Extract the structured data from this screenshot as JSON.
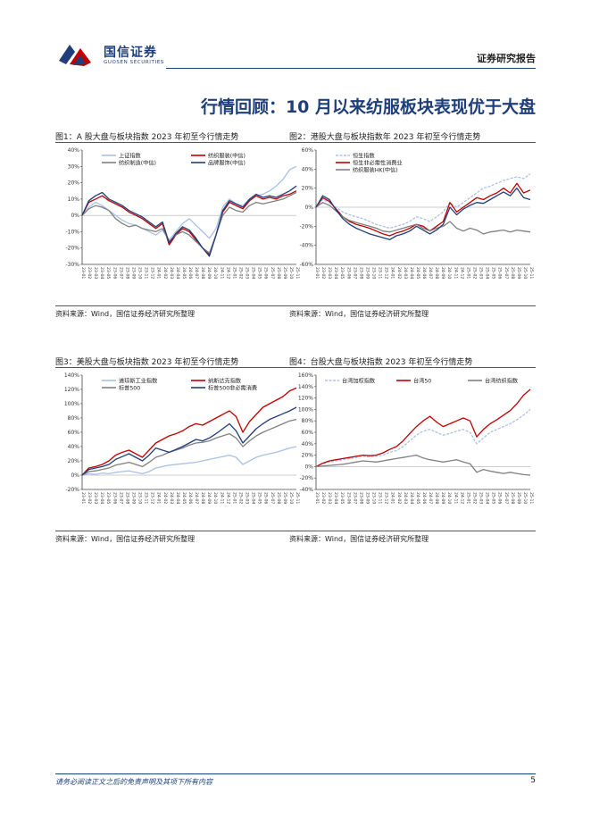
{
  "header": {
    "logo_cn": "国信证券",
    "logo_en": "GUOSEN SECURITIES",
    "report_type": "证券研究报告"
  },
  "section_title": "行情回顾：10 月以来纺服板块表现优于大盘",
  "colors": {
    "brand": "#1f3f7a",
    "light_blue": "#a9c1e8",
    "red": "#c00000",
    "gray": "#808080",
    "dark_blue": "#1f3f7a"
  },
  "figures": [
    {
      "title": "图1：A 股大盘与板块指数 2023 年初至今行情走势",
      "source": "资料来源：Wind，国信证券经济研究所整理",
      "chart_data": {
        "type": "line",
        "y_ticks": [
          "40%",
          "30%",
          "20%",
          "10%",
          "0%",
          "-10%",
          "-20%",
          "-30%"
        ],
        "ylim": [
          -30,
          40
        ],
        "x_start": "2023-01",
        "x_end": "2025-11",
        "legend_cols": 2,
        "series": [
          {
            "name": "上证指数",
            "color": "#a9c1e8",
            "style": "solid",
            "values": [
              0,
              5,
              8,
              6,
              3,
              0,
              -3,
              -5,
              -6,
              -8,
              -10,
              -12,
              -9,
              -15,
              -10,
              -5,
              -2,
              -6,
              -10,
              -14,
              -8,
              5,
              10,
              7,
              6,
              10,
              12,
              13,
              15,
              18,
              22,
              28,
              30
            ]
          },
          {
            "name": "纺织服装(中信)",
            "color": "#c00000",
            "style": "solid",
            "values": [
              0,
              8,
              10,
              12,
              9,
              7,
              5,
              2,
              0,
              -2,
              -5,
              -8,
              -5,
              -18,
              -12,
              -8,
              -10,
              -15,
              -20,
              -24,
              -12,
              2,
              8,
              6,
              4,
              9,
              12,
              10,
              11,
              10,
              12,
              13,
              15
            ]
          },
          {
            "name": "纺织制造(中信)",
            "color": "#808080",
            "style": "solid",
            "values": [
              0,
              4,
              6,
              5,
              3,
              -2,
              -5,
              -7,
              -6,
              -8,
              -9,
              -10,
              -8,
              -16,
              -12,
              -10,
              -12,
              -16,
              -20,
              -23,
              -12,
              0,
              5,
              3,
              2,
              6,
              8,
              7,
              8,
              9,
              10,
              12,
              14
            ]
          },
          {
            "name": "品牌服饰(中信)",
            "color": "#1f3f7a",
            "style": "solid",
            "values": [
              0,
              9,
              12,
              14,
              10,
              8,
              6,
              3,
              1,
              -1,
              -4,
              -7,
              -4,
              -17,
              -11,
              -7,
              -9,
              -14,
              -20,
              -25,
              -12,
              3,
              9,
              7,
              5,
              10,
              13,
              11,
              12,
              11,
              13,
              15,
              18
            ]
          }
        ]
      }
    },
    {
      "title": "图2：港股大盘与板块指数年 2023 年初至今行情走势",
      "source": "资料来源：Wind，国信证券经济研究所整理",
      "chart_data": {
        "type": "line",
        "y_ticks": [
          "60%",
          "40%",
          "20%",
          "0%",
          "-20%",
          "-40%",
          "-60%"
        ],
        "ylim": [
          -60,
          60
        ],
        "x_start": "2023-01",
        "x_end": "2025-11",
        "legend_cols": 1,
        "series": [
          {
            "name": "恒生指数",
            "color": "#a9c1e8",
            "style": "dashed",
            "values": [
              0,
              8,
              5,
              0,
              -5,
              -8,
              -10,
              -12,
              -15,
              -18,
              -20,
              -22,
              -20,
              -18,
              -15,
              -10,
              -12,
              -15,
              -10,
              -5,
              5,
              0,
              5,
              10,
              15,
              20,
              22,
              25,
              28,
              30,
              32,
              30,
              35
            ]
          },
          {
            "name": "恒生非必需性消费业",
            "color": "#c00000",
            "style": "solid",
            "values": [
              0,
              10,
              6,
              -2,
              -10,
              -15,
              -18,
              -20,
              -22,
              -25,
              -28,
              -30,
              -27,
              -25,
              -22,
              -18,
              -20,
              -25,
              -20,
              -15,
              5,
              -5,
              0,
              5,
              10,
              8,
              12,
              15,
              20,
              15,
              25,
              15,
              18
            ]
          },
          {
            "name": "纺织服装HK(中信)",
            "color": "#808080",
            "style": "solid",
            "values": [
              0,
              5,
              2,
              -4,
              -10,
              -14,
              -16,
              -18,
              -20,
              -22,
              -25,
              -26,
              -24,
              -22,
              -20,
              -18,
              -22,
              -25,
              -22,
              -20,
              -15,
              -22,
              -25,
              -22,
              -24,
              -28,
              -26,
              -25,
              -24,
              -26,
              -24,
              -25,
              -26
            ]
          },
          {
            "name": "",
            "color": "#1f3f7a",
            "style": "solid",
            "values": [
              0,
              12,
              8,
              -3,
              -12,
              -18,
              -22,
              -25,
              -28,
              -30,
              -32,
              -34,
              -30,
              -28,
              -25,
              -20,
              -24,
              -28,
              -24,
              -18,
              0,
              -8,
              -2,
              2,
              5,
              4,
              8,
              12,
              16,
              12,
              20,
              10,
              8
            ]
          }
        ]
      }
    },
    {
      "title": "图3：美股大盘与板块指数 2023 年初至今行情走势",
      "source": "资料来源：Wind，国信证券经济研究所整理",
      "chart_data": {
        "type": "line",
        "y_ticks": [
          "140%",
          "120%",
          "100%",
          "80%",
          "60%",
          "40%",
          "20%",
          "0%",
          "-20%"
        ],
        "ylim": [
          -20,
          140
        ],
        "x_start": "2023-01",
        "x_end": "2025-11",
        "legend_cols": 2,
        "series": [
          {
            "name": "道琼斯工业指数",
            "color": "#a9c1e8",
            "style": "solid",
            "values": [
              0,
              2,
              1,
              3,
              2,
              4,
              5,
              6,
              4,
              2,
              5,
              10,
              12,
              14,
              15,
              16,
              17,
              18,
              20,
              22,
              24,
              26,
              28,
              25,
              15,
              20,
              25,
              28,
              30,
              32,
              35,
              38,
              40
            ]
          },
          {
            "name": "纳斯达克指数",
            "color": "#c00000",
            "style": "solid",
            "values": [
              0,
              10,
              12,
              15,
              20,
              28,
              32,
              35,
              30,
              25,
              35,
              45,
              50,
              55,
              58,
              62,
              68,
              72,
              70,
              75,
              80,
              85,
              90,
              82,
              60,
              75,
              85,
              95,
              100,
              105,
              110,
              118,
              122
            ]
          },
          {
            "name": "标普500",
            "color": "#808080",
            "style": "solid",
            "values": [
              0,
              5,
              6,
              8,
              10,
              14,
              16,
              18,
              15,
              12,
              18,
              25,
              28,
              32,
              35,
              38,
              42,
              45,
              46,
              48,
              52,
              55,
              58,
              52,
              40,
              48,
              55,
              60,
              64,
              68,
              72,
              76,
              78
            ]
          },
          {
            "name": "标普500非必需消费",
            "color": "#1f3f7a",
            "style": "solid",
            "values": [
              0,
              8,
              10,
              12,
              15,
              22,
              26,
              30,
              25,
              20,
              28,
              38,
              35,
              32,
              36,
              40,
              45,
              50,
              48,
              52,
              58,
              65,
              72,
              62,
              45,
              55,
              65,
              72,
              78,
              82,
              86,
              90,
              95
            ]
          }
        ]
      }
    },
    {
      "title": "图4：台股大盘与板块指数 2023 年初至今行情走势",
      "source": "资料来源：Wind，国信证券经济研究所整理",
      "chart_data": {
        "type": "line",
        "y_ticks": [
          "160%",
          "140%",
          "120%",
          "100%",
          "80%",
          "60%",
          "40%",
          "20%",
          "0%",
          "-20%",
          "-40%"
        ],
        "ylim": [
          -40,
          160
        ],
        "x_start": "2023-01",
        "x_end": "2025-11",
        "legend_cols": 3,
        "series": [
          {
            "name": "台湾加权指数",
            "color": "#a9c1e8",
            "style": "dashed",
            "values": [
              0,
              5,
              8,
              10,
              12,
              14,
              16,
              18,
              17,
              18,
              20,
              25,
              28,
              35,
              45,
              55,
              62,
              65,
              60,
              55,
              58,
              62,
              65,
              60,
              40,
              50,
              60,
              65,
              70,
              75,
              82,
              90,
              100
            ]
          },
          {
            "name": "台湾50",
            "color": "#c00000",
            "style": "solid",
            "values": [
              0,
              6,
              10,
              12,
              14,
              16,
              18,
              20,
              19,
              20,
              24,
              30,
              35,
              45,
              58,
              70,
              80,
              88,
              78,
              70,
              75,
              80,
              85,
              80,
              52,
              65,
              75,
              82,
              90,
              98,
              110,
              125,
              135
            ]
          },
          {
            "name": "台湾纺织指数",
            "color": "#808080",
            "style": "solid",
            "values": [
              0,
              1,
              2,
              3,
              4,
              6,
              8,
              10,
              9,
              8,
              10,
              12,
              14,
              16,
              18,
              20,
              15,
              12,
              10,
              8,
              10,
              12,
              8,
              5,
              -10,
              -5,
              -8,
              -10,
              -12,
              -10,
              -12,
              -14,
              -15
            ]
          }
        ]
      }
    }
  ],
  "footer": {
    "disclaimer": "请务必阅读正文之后的免责声明及其项下所有内容",
    "page_number": "5"
  }
}
